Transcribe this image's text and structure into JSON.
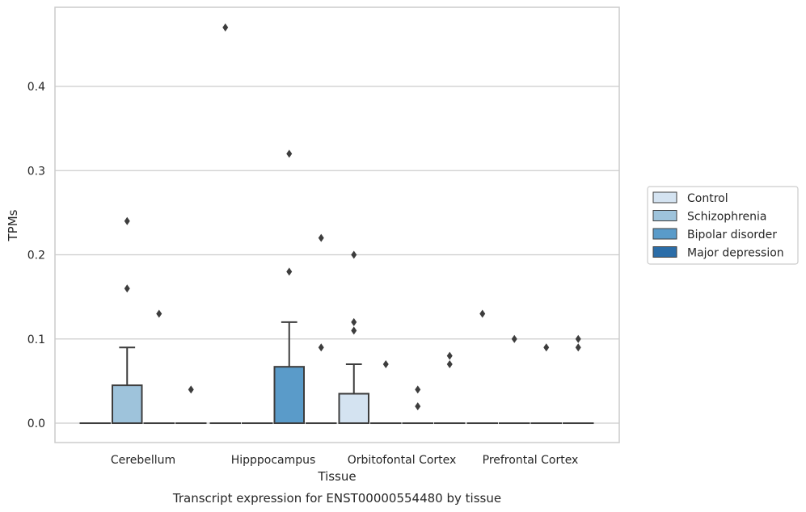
{
  "chart_data": {
    "type": "box",
    "title": "Transcript expression for ENST00000554480 by tissue",
    "xlabel": "Tissue",
    "ylabel": "TPMs",
    "ylim": [
      -0.023,
      0.494
    ],
    "yticks": [
      0.0,
      0.1,
      0.2,
      0.3,
      0.4
    ],
    "ytick_labels": [
      "0.0",
      "0.1",
      "0.2",
      "0.3",
      "0.4"
    ],
    "grid": "horizontal",
    "legend_position": "right",
    "categories": [
      "Cerebellum",
      "Hipppocampus",
      "Orbitofontal Cortex",
      "Prefrontal Cortex"
    ],
    "series": [
      {
        "name": "Control",
        "color": "#d4e3f1",
        "boxes": [
          {
            "category": "Cerebellum",
            "whislo": 0,
            "q1": 0,
            "med": 0,
            "q3": 0,
            "whishi": 0,
            "fliers": []
          },
          {
            "category": "Hipppocampus",
            "whislo": 0,
            "q1": 0,
            "med": 0,
            "q3": 0,
            "whishi": 0,
            "fliers": [
              0.47
            ]
          },
          {
            "category": "Orbitofontal Cortex",
            "whislo": 0,
            "q1": 0,
            "med": 0,
            "q3": 0.035,
            "whishi": 0.07,
            "fliers": [
              0.2,
              0.12,
              0.11
            ]
          },
          {
            "category": "Prefrontal Cortex",
            "whislo": 0,
            "q1": 0,
            "med": 0,
            "q3": 0,
            "whishi": 0,
            "fliers": [
              0.13
            ]
          }
        ]
      },
      {
        "name": "Schizophrenia",
        "color": "#9ec3db",
        "boxes": [
          {
            "category": "Cerebellum",
            "whislo": 0,
            "q1": 0,
            "med": 0,
            "q3": 0.045,
            "whishi": 0.09,
            "fliers": [
              0.24,
              0.16
            ]
          },
          {
            "category": "Hipppocampus",
            "whislo": 0,
            "q1": 0,
            "med": 0,
            "q3": 0,
            "whishi": 0,
            "fliers": []
          },
          {
            "category": "Orbitofontal Cortex",
            "whislo": 0,
            "q1": 0,
            "med": 0,
            "q3": 0,
            "whishi": 0,
            "fliers": [
              0.07
            ]
          },
          {
            "category": "Prefrontal Cortex",
            "whislo": 0,
            "q1": 0,
            "med": 0,
            "q3": 0,
            "whishi": 0,
            "fliers": [
              0.1
            ]
          }
        ]
      },
      {
        "name": "Bipolar disorder",
        "color": "#5a9bc9",
        "boxes": [
          {
            "category": "Cerebellum",
            "whislo": 0,
            "q1": 0,
            "med": 0,
            "q3": 0,
            "whishi": 0,
            "fliers": [
              0.13
            ]
          },
          {
            "category": "Hipppocampus",
            "whislo": 0,
            "q1": 0,
            "med": 0,
            "q3": 0.067,
            "whishi": 0.12,
            "fliers": [
              0.32,
              0.18
            ]
          },
          {
            "category": "Orbitofontal Cortex",
            "whislo": 0,
            "q1": 0,
            "med": 0,
            "q3": 0,
            "whishi": 0,
            "fliers": [
              0.04,
              0.02
            ]
          },
          {
            "category": "Prefrontal Cortex",
            "whislo": 0,
            "q1": 0,
            "med": 0,
            "q3": 0,
            "whishi": 0,
            "fliers": [
              0.09
            ]
          }
        ]
      },
      {
        "name": "Major depression",
        "color": "#2b6da8",
        "boxes": [
          {
            "category": "Cerebellum",
            "whislo": 0,
            "q1": 0,
            "med": 0,
            "q3": 0,
            "whishi": 0,
            "fliers": [
              0.04
            ]
          },
          {
            "category": "Hipppocampus",
            "whislo": 0,
            "q1": 0,
            "med": 0,
            "q3": 0,
            "whishi": 0,
            "fliers": [
              0.22,
              0.09
            ]
          },
          {
            "category": "Orbitofontal Cortex",
            "whislo": 0,
            "q1": 0,
            "med": 0,
            "q3": 0,
            "whishi": 0,
            "fliers": [
              0.08,
              0.07
            ]
          },
          {
            "category": "Prefrontal Cortex",
            "whislo": 0,
            "q1": 0,
            "med": 0,
            "q3": 0,
            "whishi": 0,
            "fliers": [
              0.1,
              0.09
            ]
          }
        ]
      }
    ]
  },
  "colors": {
    "grid": "#cccccc",
    "spine": "#cccccc",
    "line": "#3d3d3d",
    "text": "#262626"
  }
}
